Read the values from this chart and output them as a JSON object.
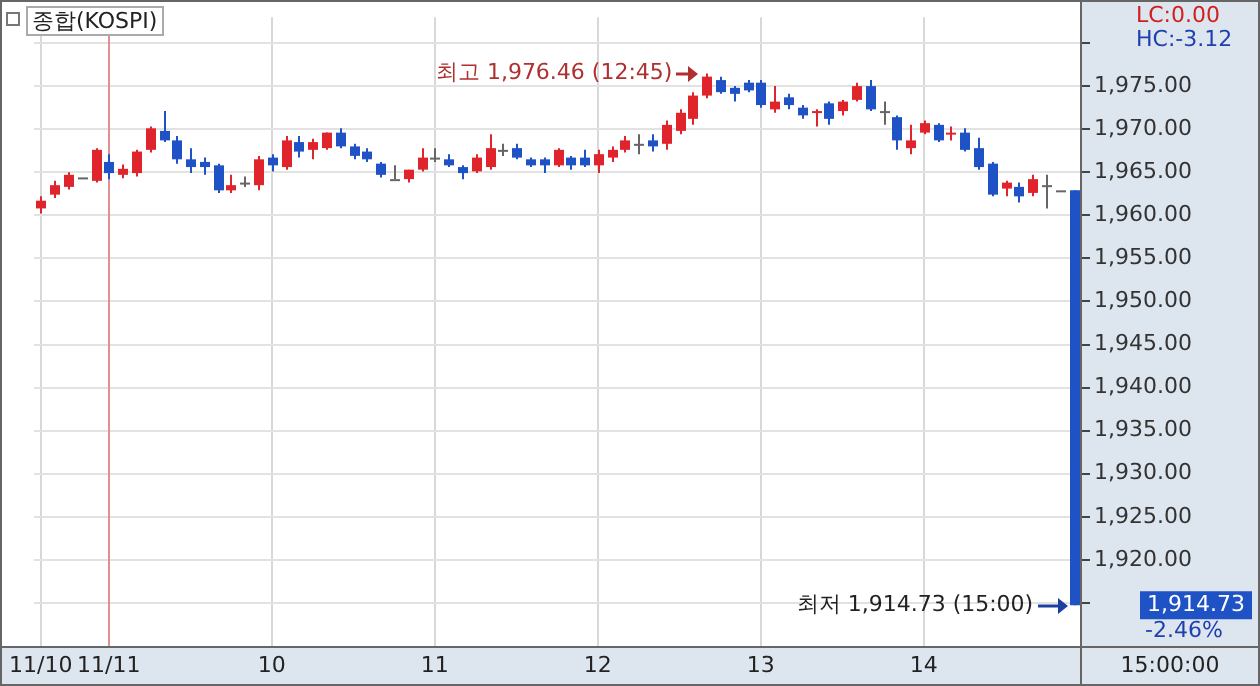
{
  "chart_data": {
    "type": "candlestick",
    "title": "종합(KOSPI)",
    "categories": [
      "11/10",
      null,
      null,
      null,
      null,
      "11/11",
      null,
      null,
      null,
      null,
      null,
      null,
      null,
      null,
      null,
      null,
      null,
      "10",
      null,
      null,
      null,
      null,
      null,
      null,
      null,
      null,
      null,
      null,
      null,
      "11",
      null,
      null,
      null,
      null,
      null,
      null,
      null,
      null,
      null,
      null,
      null,
      "12",
      null,
      null,
      null,
      null,
      null,
      null,
      null,
      null,
      null,
      null,
      null,
      "13",
      null,
      null,
      null,
      null,
      null,
      null,
      null,
      null,
      null,
      null,
      null,
      "14",
      null,
      null,
      null,
      null,
      null,
      null,
      null,
      null,
      null,
      null,
      null
    ],
    "ohlc": [
      [
        1960.8,
        1962.2,
        1960.2,
        1961.7
      ],
      [
        1962.4,
        1964,
        1962,
        1963.5
      ],
      [
        1963.3,
        1965,
        1963,
        1964.7
      ],
      [
        1964.4,
        1964.4,
        1964.4,
        1964.4
      ],
      [
        1964,
        1967.8,
        1963.8,
        1967.6
      ],
      [
        1966.2,
        1967.1,
        1964.2,
        1964.9
      ],
      [
        1964.7,
        1965.9,
        1964.3,
        1965.4
      ],
      [
        1964.9,
        1967.6,
        1964.5,
        1967.4
      ],
      [
        1967.6,
        1970.3,
        1967.3,
        1970.1
      ],
      [
        1969.8,
        1972.1,
        1968.5,
        1968.7
      ],
      [
        1968.7,
        1969.2,
        1966,
        1966.5
      ],
      [
        1966.5,
        1967.8,
        1964.9,
        1965.6
      ],
      [
        1966.2,
        1966.7,
        1964.7,
        1965.6
      ],
      [
        1965.8,
        1966,
        1962.6,
        1962.9
      ],
      [
        1962.9,
        1964.7,
        1962.6,
        1963.5
      ],
      [
        1963.8,
        1964.5,
        1963.3,
        1963.8
      ],
      [
        1963.5,
        1966.9,
        1962.9,
        1966.5
      ],
      [
        1966.7,
        1967.1,
        1965.1,
        1965.8
      ],
      [
        1965.6,
        1969.2,
        1965.3,
        1968.7
      ],
      [
        1968.5,
        1969.2,
        1966.7,
        1967.4
      ],
      [
        1967.6,
        1968.9,
        1966.5,
        1968.5
      ],
      [
        1967.8,
        1969.6,
        1967.6,
        1969.6
      ],
      [
        1969.6,
        1970.1,
        1967.8,
        1968
      ],
      [
        1968,
        1968.3,
        1966.5,
        1966.9
      ],
      [
        1967.4,
        1967.8,
        1966.2,
        1966.5
      ],
      [
        1966,
        1966.2,
        1964.4,
        1964.7
      ],
      [
        1964.2,
        1965.8,
        1964.2,
        1964.2
      ],
      [
        1964.2,
        1965.3,
        1963.8,
        1965.3
      ],
      [
        1965.3,
        1967.8,
        1965.1,
        1966.7
      ],
      [
        1966.7,
        1967.8,
        1966.2,
        1966.7
      ],
      [
        1966.5,
        1967.1,
        1965.6,
        1965.8
      ],
      [
        1965.6,
        1965.8,
        1964.2,
        1964.9
      ],
      [
        1965.1,
        1967.1,
        1964.9,
        1966.7
      ],
      [
        1965.6,
        1969.4,
        1965.3,
        1967.8
      ],
      [
        1967.6,
        1968.3,
        1966.9,
        1967.6
      ],
      [
        1967.8,
        1968.3,
        1966.5,
        1966.7
      ],
      [
        1966.5,
        1966.7,
        1965.6,
        1965.8
      ],
      [
        1966.5,
        1966.7,
        1964.9,
        1965.8
      ],
      [
        1965.8,
        1967.8,
        1965.6,
        1967.6
      ],
      [
        1966.7,
        1966.9,
        1965.3,
        1965.8
      ],
      [
        1966.7,
        1967.6,
        1965.6,
        1965.8
      ],
      [
        1965.8,
        1967.6,
        1964.9,
        1967.1
      ],
      [
        1966.7,
        1968,
        1966.2,
        1967.6
      ],
      [
        1967.6,
        1969.2,
        1967.3,
        1968.7
      ],
      [
        1968.3,
        1969.4,
        1967.1,
        1968.3
      ],
      [
        1968.7,
        1969.4,
        1967.4,
        1968
      ],
      [
        1968.3,
        1971,
        1967.6,
        1970.5
      ],
      [
        1969.8,
        1972.3,
        1969.4,
        1971.9
      ],
      [
        1971.2,
        1974.3,
        1970.5,
        1973.9
      ],
      [
        1973.9,
        1976.46,
        1973.6,
        1976.1
      ],
      [
        1975.7,
        1976.1,
        1974.1,
        1974.3
      ],
      [
        1974.8,
        1975,
        1973.2,
        1974.1
      ],
      [
        1975.4,
        1975.7,
        1974.3,
        1974.5
      ],
      [
        1975.4,
        1975.7,
        1972.5,
        1972.8
      ],
      [
        1972.3,
        1975,
        1971.9,
        1973.2
      ],
      [
        1973.7,
        1974.1,
        1972.3,
        1972.8
      ],
      [
        1972.5,
        1972.8,
        1971.2,
        1971.6
      ],
      [
        1971.9,
        1972.3,
        1970.3,
        1972.1
      ],
      [
        1973,
        1973.2,
        1970.5,
        1971.2
      ],
      [
        1972.1,
        1973.4,
        1971.6,
        1973.2
      ],
      [
        1973.4,
        1975.4,
        1973.2,
        1975
      ],
      [
        1975,
        1975.7,
        1972.1,
        1972.3
      ],
      [
        1972.1,
        1973.2,
        1970.5,
        1972.1
      ],
      [
        1971.4,
        1971.6,
        1967.6,
        1968.7
      ],
      [
        1967.8,
        1970.5,
        1967.1,
        1968.7
      ],
      [
        1969.6,
        1971,
        1969.4,
        1970.7
      ],
      [
        1970.5,
        1970.7,
        1968.5,
        1968.7
      ],
      [
        1969.4,
        1970.3,
        1968.7,
        1969.6
      ],
      [
        1969.6,
        1970.1,
        1967.4,
        1967.6
      ],
      [
        1967.8,
        1969,
        1965.3,
        1965.6
      ],
      [
        1966,
        1966.2,
        1962.2,
        1962.4
      ],
      [
        1963.1,
        1964,
        1962.2,
        1963.8
      ],
      [
        1963.3,
        1963.8,
        1961.5,
        1962.2
      ],
      [
        1962.6,
        1964.7,
        1962.2,
        1964.2
      ],
      [
        1963.5,
        1964.7,
        1960.8,
        1963.5
      ],
      [
        1962.9,
        1962.9,
        1962.9,
        1962.9
      ],
      [
        1962.9,
        1962.9,
        1914.73,
        1914.73
      ]
    ],
    "colors": [
      "#e0242b",
      "#e0242b",
      "#e0242b",
      "#666666",
      "#e0242b",
      "#1f52c4",
      "#e0242b",
      "#e0242b",
      "#e0242b",
      "#1f52c4",
      "#1f52c4",
      "#1f52c4",
      "#1f52c4",
      "#1f52c4",
      "#e0242b",
      "#666666",
      "#e0242b",
      "#1f52c4",
      "#e0242b",
      "#1f52c4",
      "#e0242b",
      "#e0242b",
      "#1f52c4",
      "#1f52c4",
      "#1f52c4",
      "#1f52c4",
      "#666666",
      "#e0242b",
      "#e0242b",
      "#666666",
      "#1f52c4",
      "#1f52c4",
      "#e0242b",
      "#e0242b",
      "#666666",
      "#1f52c4",
      "#1f52c4",
      "#1f52c4",
      "#e0242b",
      "#1f52c4",
      "#1f52c4",
      "#e0242b",
      "#e0242b",
      "#e0242b",
      "#666666",
      "#1f52c4",
      "#e0242b",
      "#e0242b",
      "#e0242b",
      "#e0242b",
      "#1f52c4",
      "#1f52c4",
      "#1f52c4",
      "#1f52c4",
      "#e0242b",
      "#1f52c4",
      "#1f52c4",
      "#e0242b",
      "#1f52c4",
      "#e0242b",
      "#e0242b",
      "#1f52c4",
      "#666666",
      "#1f52c4",
      "#e0242b",
      "#e0242b",
      "#1f52c4",
      "#e0242b",
      "#1f52c4",
      "#1f52c4",
      "#1f52c4",
      "#e0242b",
      "#1f52c4",
      "#e0242b",
      "#666666",
      "#666666",
      "#1f52c4"
    ],
    "ylim": [
      1910,
      1983
    ],
    "yticks": [
      {
        "value": 1915,
        "label": null
      },
      {
        "value": 1920,
        "label": "1,920.00"
      },
      {
        "value": 1925,
        "label": "1,925.00"
      },
      {
        "value": 1930,
        "label": "1,930.00"
      },
      {
        "value": 1935,
        "label": "1,935.00"
      },
      {
        "value": 1940,
        "label": "1,940.00"
      },
      {
        "value": 1945,
        "label": "1,945.00"
      },
      {
        "value": 1950,
        "label": "1,950.00"
      },
      {
        "value": 1955,
        "label": "1,955.00"
      },
      {
        "value": 1960,
        "label": "1,960.00"
      },
      {
        "value": 1965,
        "label": "1,965.00"
      },
      {
        "value": 1970,
        "label": "1,970.00"
      },
      {
        "value": 1975,
        "label": "1,975.00"
      },
      {
        "value": 1980,
        "label": null
      }
    ],
    "ref_lines": [
      {
        "axis": "x",
        "value": "11/11",
        "color": "#e09090"
      }
    ],
    "annotations": [
      "LC:0.00",
      "HC:-3.12",
      "최고 1,976.46 (12:45)",
      "최저 1,914.73 (15:00)",
      "1,914.73",
      "-2.46%",
      "15:00:00"
    ],
    "grid": true,
    "legend": false
  }
}
